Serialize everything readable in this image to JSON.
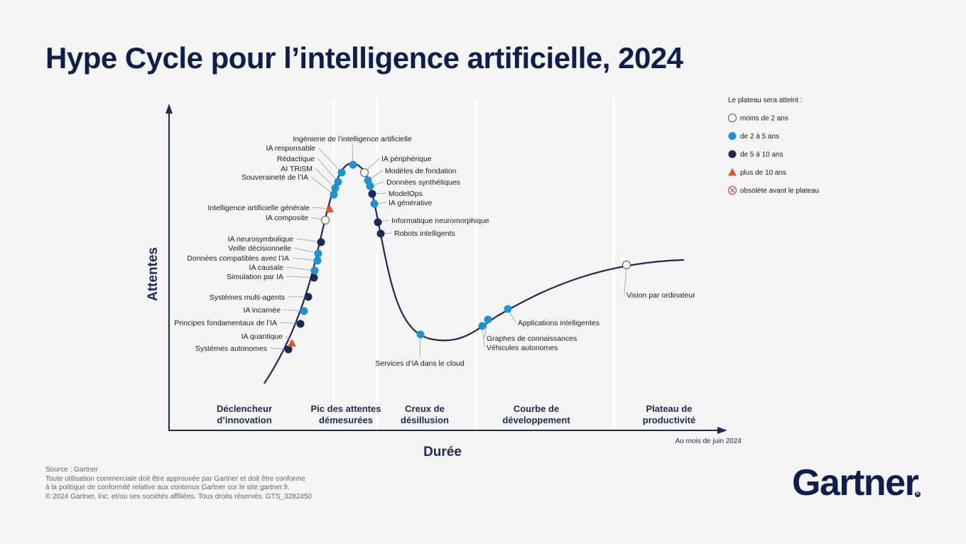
{
  "title": "Hype Cycle pour l’intelligence artificielle, 2024",
  "colors": {
    "navy": "#1b2a57",
    "blue": "#1e93d3",
    "orange": "#e2572b",
    "obsolete": "#d64545"
  },
  "chart_data": {
    "type": "scatter",
    "xlabel": "Durée",
    "ylabel": "Attentes",
    "date_note": "Au mois de juin 2024",
    "phases": [
      {
        "line1": "Déclencheur",
        "line2": "d’innovation"
      },
      {
        "line1": "Pic des attentes",
        "line2": "démesurées"
      },
      {
        "line1": "Creux de",
        "line2": "désillusion"
      },
      {
        "line1": "Courbe de",
        "line2": "développement"
      },
      {
        "line1": "Plateau de",
        "line2": "productivité"
      }
    ],
    "legend": {
      "title": "Le plateau sera atteint :",
      "items": [
        {
          "label": "moins de 2 ans",
          "marker": "white"
        },
        {
          "label": "de 2 à 5 ans",
          "marker": "blue"
        },
        {
          "label": "de 5 à 10 ans",
          "marker": "navy"
        },
        {
          "label": "plus de 10 ans",
          "marker": "orange"
        },
        {
          "label": "obsolète avant le plateau",
          "marker": "obsolete"
        }
      ]
    },
    "points": [
      {
        "label": "Systèmes autonomes",
        "marker": "navy"
      },
      {
        "label": "IA quantique",
        "marker": "orange"
      },
      {
        "label": "Principes fondamentaux de l’IA",
        "marker": "navy"
      },
      {
        "label": "IA incarnée",
        "marker": "blue"
      },
      {
        "label": "Systèmes multi-agents",
        "marker": "navy"
      },
      {
        "label": "Simulation par IA",
        "marker": "navy"
      },
      {
        "label": "IA causale",
        "marker": "blue"
      },
      {
        "label": "Données compatibles avec l’IA",
        "marker": "blue"
      },
      {
        "label": "Veille décisionnelle",
        "marker": "blue"
      },
      {
        "label": "IA neurosymbolique",
        "marker": "navy"
      },
      {
        "label": "IA composite",
        "marker": "white"
      },
      {
        "label": "Intelligence artificielle générale",
        "marker": "orange"
      },
      {
        "label": "Souveraineté de l’IA",
        "marker": "blue"
      },
      {
        "label": "AI TRiSM",
        "marker": "blue"
      },
      {
        "label": "Rédactique",
        "marker": "blue"
      },
      {
        "label": "IA responsable",
        "marker": "blue"
      },
      {
        "label": "Ingénierie de l’intelligence artificielle",
        "marker": "blue"
      },
      {
        "label": "IA périphérique",
        "marker": "white"
      },
      {
        "label": "Modèles de fondation",
        "marker": "blue"
      },
      {
        "label": "Données synthétiques",
        "marker": "blue"
      },
      {
        "label": "ModelOps",
        "marker": "navy"
      },
      {
        "label": "IA générative",
        "marker": "blue"
      },
      {
        "label": "Informatique neuromorphique",
        "marker": "navy"
      },
      {
        "label": "Robots intelligents",
        "marker": "navy"
      },
      {
        "label": "Services d’IA dans le cloud",
        "marker": "blue"
      },
      {
        "label": "Véhicules autonomes",
        "marker": "blue"
      },
      {
        "label": "Graphes de connaissances",
        "marker": "blue"
      },
      {
        "label": "Applications intelligentes",
        "marker": "blue"
      },
      {
        "label": "Vision par ordinateur",
        "marker": "white"
      }
    ]
  },
  "footer": {
    "line1": "Source : Gartner",
    "line2": "Toute utilisation commerciale doit être approuvée par Gartner et doit être conforme",
    "line3": "à la politique de conformité relative aux contenus Gartner sur le site gartner.fr.",
    "line4": "© 2024 Gartner, Inc. et/ou ses sociétés affiliées. Tous droits réservés. GTS_3282450"
  },
  "logo": "Gartner"
}
